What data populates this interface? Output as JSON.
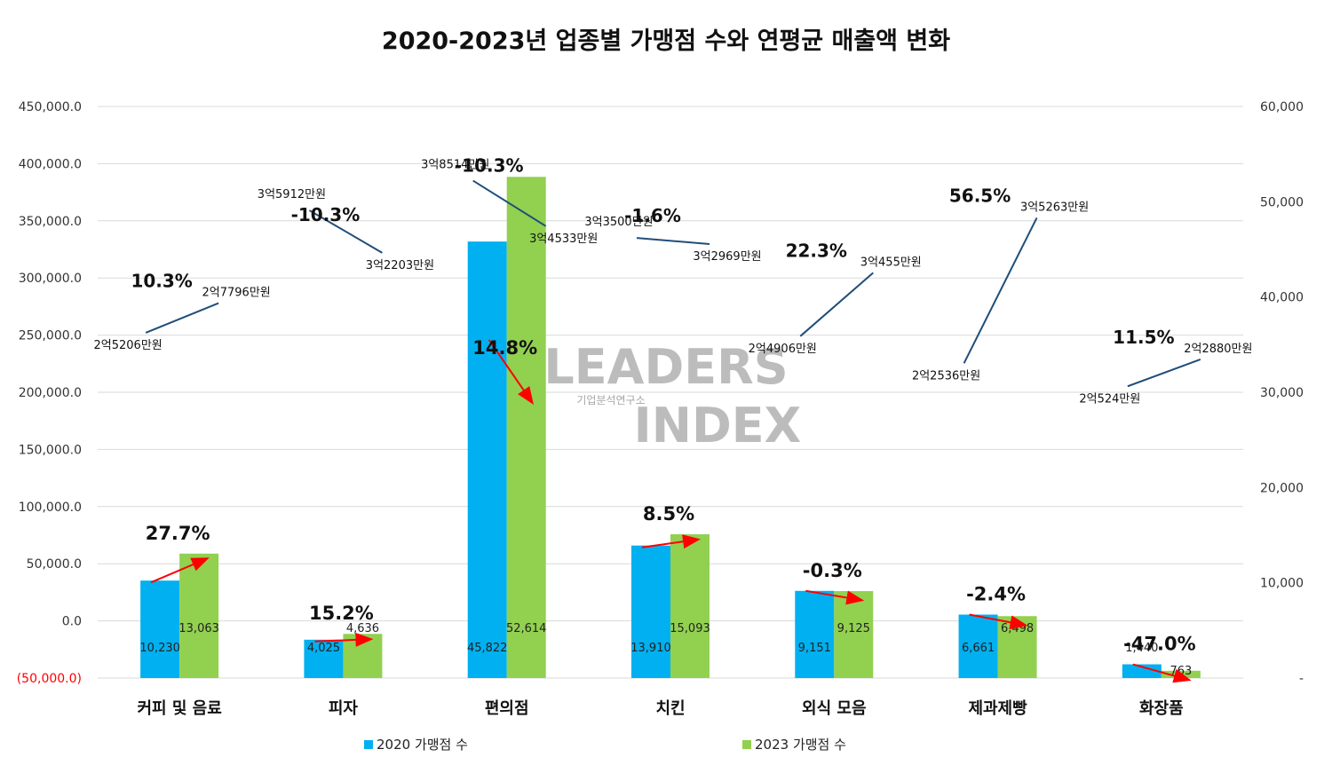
{
  "title": "2020-2023년 업종별 가맹점 수와 연평균 매출액 변화",
  "colors": {
    "s2020": "#00B0F0",
    "s2023": "#92D050",
    "arrow": "#FF0000",
    "revenue_line": "#1F4E79",
    "neg_tick": "#FF0000"
  },
  "watermark": {
    "main": "LEADERS INDEX",
    "sub": "기업분석연구소"
  },
  "chart_data": {
    "type": "bar",
    "categories": [
      "커피 및 음료",
      "피자",
      "편의점",
      "치킨",
      "외식 모음",
      "제과제빵",
      "화장품"
    ],
    "series": [
      {
        "name": "2020 가맹점 수",
        "values": [
          10230,
          4025,
          45822,
          13910,
          9151,
          6661,
          1440
        ],
        "labels": [
          "10,230",
          "4,025",
          "45,822",
          "13,910",
          "9,151",
          "6,661",
          "1,440"
        ]
      },
      {
        "name": "2023 가맹점 수",
        "values": [
          13063,
          4636,
          52614,
          15093,
          9125,
          6498,
          763
        ],
        "labels": [
          "13,063",
          "4,636",
          "52,614",
          "15,093",
          "9,125",
          "6,498",
          "763"
        ]
      }
    ],
    "store_change_pct": [
      "27.7%",
      "15.2%",
      "14.8%",
      "8.5%",
      "-0.3%",
      "-2.4%",
      "-47.0%"
    ],
    "avg_revenue": {
      "values_2020": [
        25206,
        35912,
        38514,
        33500,
        24906,
        22536,
        20524
      ],
      "values_2023": [
        27796,
        32203,
        34533,
        32969,
        30455,
        35263,
        22880
      ],
      "labels_2020": [
        "2억5206만원",
        "3억5912만원",
        "3억8514만원",
        "3억3500만원",
        "2억4906만원",
        "2억2536만원",
        "2억524만원"
      ],
      "labels_2023": [
        "2억7796만원",
        "3억2203만원",
        "3억4533만원",
        "3억2969만원",
        "3억455만원",
        "3억5263만원",
        "2억2880만원"
      ],
      "change_pct": [
        "10.3%",
        "-10.3%",
        "-10.3%",
        "-1.6%",
        "22.3%",
        "56.5%",
        "11.5%"
      ]
    },
    "left_axis": {
      "min": -50000,
      "max": 450000,
      "step": 50000,
      "tick_labels": [
        "(50,000.0)",
        "0.0",
        "50,000.0",
        "100,000.0",
        "150,000.0",
        "200,000.0",
        "250,000.0",
        "300,000.0",
        "350,000.0",
        "400,000.0",
        "450,000.0"
      ]
    },
    "right_axis": {
      "min": 0,
      "max": 60000,
      "step": 10000,
      "tick_labels": [
        "-",
        "10,000",
        "20,000",
        "30,000",
        "40,000",
        "50,000",
        "60,000"
      ]
    },
    "grid": true,
    "legend_position": "bottom"
  }
}
